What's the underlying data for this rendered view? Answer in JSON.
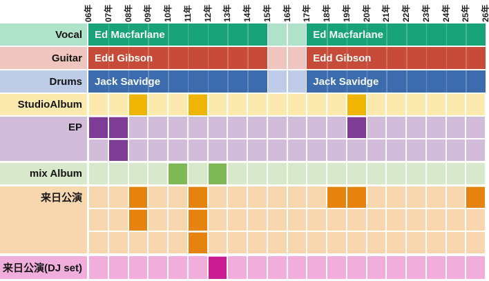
{
  "chart_data": {
    "type": "timeline",
    "title": "",
    "x_labels": [
      "06年",
      "07年",
      "08年",
      "09年",
      "10年",
      "11年",
      "12年",
      "13年",
      "14年",
      "15年",
      "16年",
      "17年",
      "18年",
      "19年",
      "20年",
      "21年",
      "22年",
      "23年",
      "24年",
      "25年",
      "26年"
    ],
    "axis_note": "years shown as rotated tick labels along the top, 06年 through 26年",
    "member_rows": [
      {
        "row_label": "Vocal",
        "member": "Ed Macfarlane",
        "bar_color": "#17a277",
        "bg_color": "#afe3c9",
        "active_spans": [
          {
            "from": "06年",
            "to": "15年"
          },
          {
            "from": "17年",
            "to": "26年"
          }
        ],
        "inactive_years": [
          "15年",
          "16年"
        ]
      },
      {
        "row_label": "Guitar",
        "member": "Edd Gibson",
        "bar_color": "#c64b39",
        "bg_color": "#f1c5bf",
        "active_spans": [
          {
            "from": "06年",
            "to": "15年"
          },
          {
            "from": "17年",
            "to": "26年"
          }
        ],
        "inactive_years": [
          "15年",
          "16年"
        ]
      },
      {
        "row_label": "Drums",
        "member": "Jack Savidge",
        "bar_color": "#3c6cae",
        "bg_color": "#bfcce8",
        "active_spans": [
          {
            "from": "06年",
            "to": "15年"
          },
          {
            "from": "17年",
            "to": "26年"
          }
        ],
        "inactive_years": [
          "15年",
          "16年"
        ]
      }
    ],
    "event_rows": [
      {
        "row_label": "StudioAlbum",
        "bg_color": "#fce9ad",
        "marker_color": "#f0b402",
        "lanes": [
          [
            "08年",
            "11年",
            "19年"
          ]
        ]
      },
      {
        "row_label": "EP",
        "bg_color": "#d1bcda",
        "marker_color": "#7d3c95",
        "lanes": [
          [
            "06年",
            "07年",
            "19年"
          ],
          [
            "07年"
          ]
        ]
      },
      {
        "row_label": "mix Album",
        "bg_color": "#d8e8ca",
        "marker_color": "#7fb955",
        "lanes": [
          [
            "10年",
            "12年"
          ]
        ]
      },
      {
        "row_label": "来日公演",
        "bg_color": "#f8d6ae",
        "marker_color": "#e6830f",
        "lanes": [
          [
            "08年",
            "11年",
            "18年",
            "19年",
            "25年"
          ],
          [
            "08年",
            "11年"
          ],
          [
            "11年"
          ]
        ]
      },
      {
        "row_label": "来日公演(DJ set)",
        "bg_color": "#f1aedd",
        "marker_color": "#ca1d94",
        "lanes": [
          [
            "12年"
          ]
        ]
      }
    ]
  }
}
